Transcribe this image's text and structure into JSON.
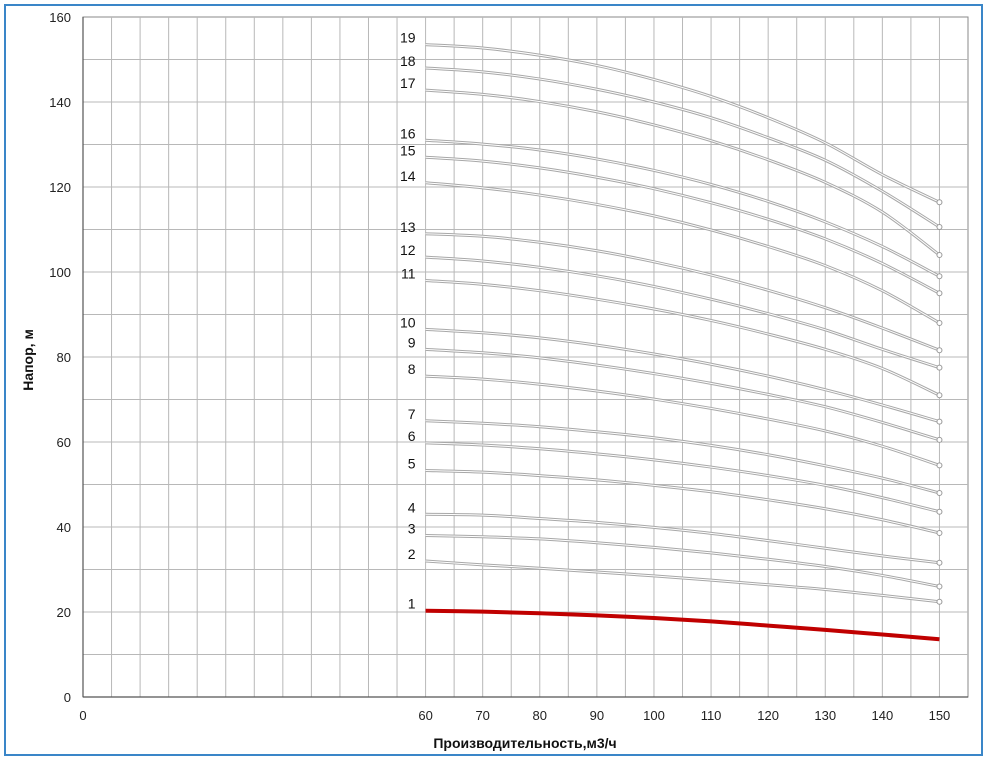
{
  "chart_data": {
    "type": "line",
    "xlabel": "Производительность,м3/ч",
    "ylabel": "Напор, м",
    "xlim": [
      0,
      155
    ],
    "ylim": [
      0,
      160
    ],
    "x_ticks": [
      0,
      60,
      70,
      80,
      90,
      100,
      110,
      120,
      130,
      140,
      150
    ],
    "y_ticks": [
      0,
      20,
      40,
      60,
      80,
      100,
      120,
      140,
      160
    ],
    "grid": true,
    "x": [
      60,
      70,
      80,
      90,
      100,
      110,
      120,
      130,
      140,
      150
    ],
    "series": [
      {
        "name": "1",
        "values": [
          20.3,
          20.1,
          19.7,
          19.2,
          18.6,
          17.8,
          16.8,
          15.8,
          14.7,
          13.6
        ],
        "color": "#c00000"
      },
      {
        "name": "2",
        "values": [
          32.0,
          31.1,
          30.3,
          29.4,
          28.5,
          27.5,
          26.4,
          25.3,
          23.9,
          22.4
        ],
        "color": "#bbbbbb"
      },
      {
        "name": "3",
        "values": [
          38.0,
          37.7,
          37.2,
          36.3,
          35.2,
          33.9,
          32.4,
          30.7,
          28.6,
          26.0
        ],
        "color": "#bbbbbb"
      },
      {
        "name": "4",
        "values": [
          43.0,
          42.8,
          42.0,
          41.1,
          39.9,
          38.5,
          36.8,
          35.0,
          33.2,
          31.6
        ],
        "color": "#bbbbbb"
      },
      {
        "name": "5",
        "values": [
          53.3,
          52.9,
          52.1,
          51.1,
          49.8,
          48.3,
          46.4,
          44.3,
          41.7,
          38.6
        ],
        "color": "#bbbbbb"
      },
      {
        "name": "6",
        "values": [
          59.8,
          59.3,
          58.4,
          57.2,
          55.8,
          54.1,
          52.1,
          49.8,
          46.9,
          43.6
        ],
        "color": "#bbbbbb"
      },
      {
        "name": "7",
        "values": [
          65.0,
          64.4,
          63.6,
          62.4,
          61.0,
          59.2,
          57.0,
          54.4,
          51.5,
          48.0
        ],
        "color": "#bbbbbb"
      },
      {
        "name": "8",
        "values": [
          75.5,
          74.8,
          73.6,
          72.0,
          70.1,
          67.9,
          65.4,
          62.6,
          59.0,
          54.5
        ],
        "color": "#bbbbbb"
      },
      {
        "name": "9",
        "values": [
          81.8,
          81.0,
          79.8,
          78.1,
          76.1,
          73.8,
          71.2,
          68.3,
          64.6,
          60.5
        ],
        "color": "#bbbbbb"
      },
      {
        "name": "10",
        "values": [
          86.5,
          85.7,
          84.5,
          82.8,
          80.7,
          78.3,
          75.5,
          72.3,
          68.7,
          64.8
        ],
        "color": "#bbbbbb"
      },
      {
        "name": "11",
        "values": [
          98.0,
          97.1,
          95.6,
          93.6,
          91.3,
          88.6,
          85.4,
          81.8,
          77.3,
          71.0
        ],
        "color": "#bbbbbb"
      },
      {
        "name": "12",
        "values": [
          103.5,
          102.6,
          101.1,
          99.1,
          96.6,
          93.6,
          90.2,
          86.4,
          81.8,
          77.5
        ],
        "color": "#bbbbbb"
      },
      {
        "name": "13",
        "values": [
          109.0,
          108.4,
          107.0,
          105.0,
          102.4,
          99.3,
          95.7,
          91.6,
          86.8,
          81.6
        ],
        "color": "#bbbbbb"
      },
      {
        "name": "14",
        "values": [
          121.0,
          119.8,
          118.1,
          115.9,
          113.2,
          109.9,
          106.0,
          101.5,
          95.6,
          88.0
        ],
        "color": "#bbbbbb"
      },
      {
        "name": "15",
        "values": [
          127.0,
          126.1,
          124.5,
          122.3,
          119.6,
          116.3,
          112.4,
          107.8,
          102.0,
          95.0
        ],
        "color": "#bbbbbb"
      },
      {
        "name": "16",
        "values": [
          131.0,
          130.1,
          128.7,
          126.6,
          123.9,
          120.6,
          116.6,
          111.8,
          106.0,
          99.0
        ],
        "color": "#bbbbbb"
      },
      {
        "name": "17",
        "values": [
          142.8,
          141.8,
          140.1,
          137.7,
          134.6,
          130.9,
          126.4,
          121.1,
          114.1,
          104.0
        ],
        "color": "#bbbbbb"
      },
      {
        "name": "18",
        "values": [
          148.0,
          147.1,
          145.4,
          143.0,
          140.0,
          136.3,
          131.6,
          126.3,
          119.0,
          110.6
        ],
        "color": "#bbbbbb"
      },
      {
        "name": "19",
        "values": [
          153.5,
          152.7,
          151.0,
          148.6,
          145.3,
          141.3,
          136.3,
          130.4,
          122.9,
          116.4
        ],
        "color": "#bbbbbb"
      }
    ]
  }
}
